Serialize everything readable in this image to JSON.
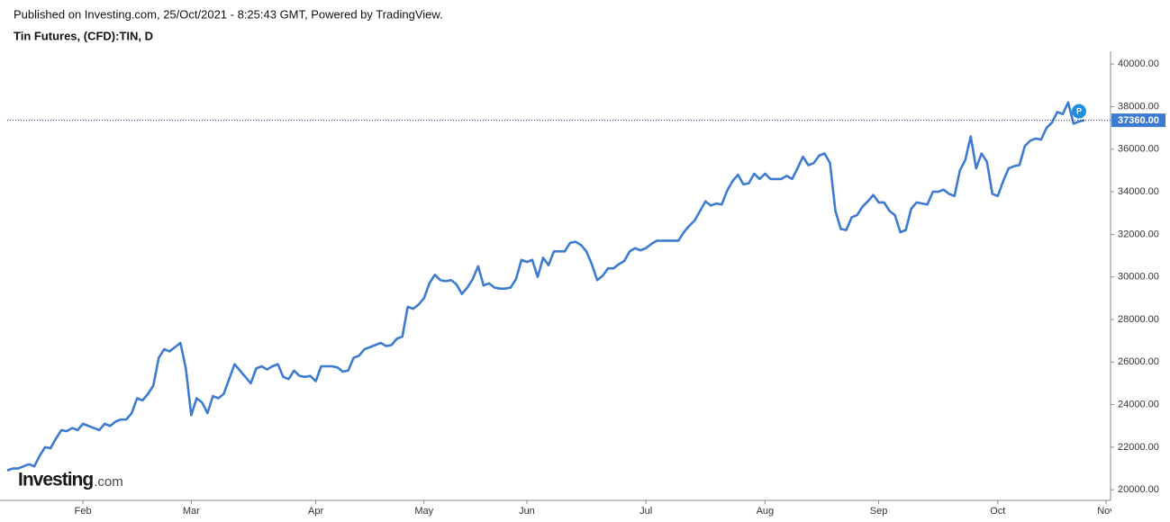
{
  "chart_data": {
    "type": "line",
    "published": "Published on Investing.com, 25/Oct/2021 - 8:25:43 GMT, Powered by TradingView.",
    "title": "Tin Futures, (CFD):TIN, D",
    "logo": "Investing",
    "logo_suffix": ".com",
    "annotation": "P",
    "price_line": {
      "value": 37360,
      "label": "37360.00"
    },
    "categories": [
      null,
      null,
      null,
      null,
      null,
      null,
      null,
      null,
      null,
      null,
      null,
      null,
      null,
      null,
      "Feb",
      null,
      null,
      null,
      null,
      null,
      null,
      null,
      null,
      null,
      null,
      null,
      null,
      null,
      null,
      null,
      null,
      null,
      null,
      null,
      "Mar",
      null,
      null,
      null,
      null,
      null,
      null,
      null,
      null,
      null,
      null,
      null,
      null,
      null,
      null,
      null,
      null,
      null,
      null,
      null,
      null,
      null,
      null,
      "Apr",
      null,
      null,
      null,
      null,
      null,
      null,
      null,
      null,
      null,
      null,
      null,
      null,
      null,
      null,
      null,
      null,
      null,
      null,
      null,
      "May",
      null,
      null,
      null,
      null,
      null,
      null,
      null,
      null,
      null,
      null,
      null,
      null,
      null,
      null,
      null,
      null,
      null,
      null,
      "Jun",
      null,
      null,
      null,
      null,
      null,
      null,
      null,
      null,
      null,
      null,
      null,
      null,
      null,
      null,
      null,
      null,
      null,
      null,
      null,
      null,
      null,
      "Jul",
      null,
      null,
      null,
      null,
      null,
      null,
      null,
      null,
      null,
      null,
      null,
      null,
      null,
      null,
      null,
      null,
      null,
      null,
      null,
      null,
      null,
      "Aug",
      null,
      null,
      null,
      null,
      null,
      null,
      null,
      null,
      null,
      null,
      null,
      null,
      null,
      null,
      null,
      null,
      null,
      null,
      null,
      null,
      "Sep",
      null,
      null,
      null,
      null,
      null,
      null,
      null,
      null,
      null,
      null,
      null,
      null,
      null,
      null,
      null,
      null,
      null,
      null,
      null,
      null,
      null,
      "Oct",
      null,
      null,
      null,
      null,
      null,
      null,
      null,
      null,
      null,
      null,
      null,
      null,
      null,
      null,
      null,
      null,
      null,
      null,
      null,
      "Nov"
    ],
    "series": [
      {
        "name": "TIN",
        "color": "#3d7bd1",
        "values": [
          20900,
          21000,
          21000,
          21100,
          21200,
          21100,
          21600,
          22000,
          21950,
          22400,
          22800,
          22750,
          22900,
          22800,
          23100,
          23000,
          22900,
          22800,
          23100,
          23000,
          23200,
          23300,
          23300,
          23600,
          24300,
          24200,
          24500,
          24900,
          26200,
          26600,
          26500,
          26700,
          26900,
          25700,
          23500,
          24300,
          24100,
          23600,
          24400,
          24300,
          24500,
          25200,
          25900,
          25600,
          25300,
          25000,
          25700,
          25800,
          25650,
          25800,
          25900,
          25300,
          25200,
          25600,
          25350,
          25300,
          25350,
          25100,
          25800,
          25800,
          25800,
          25750,
          25550,
          25600,
          26200,
          26300,
          26600,
          26700,
          26800,
          26900,
          26750,
          26800,
          27100,
          27200,
          28600,
          28500,
          28700,
          29000,
          29700,
          30100,
          29850,
          29800,
          29850,
          29650,
          29200,
          29500,
          29900,
          30500,
          29600,
          29700,
          29500,
          29450,
          29450,
          29500,
          29900,
          30800,
          30700,
          30800,
          30000,
          30900,
          30550,
          31200,
          31200,
          31200,
          31600,
          31650,
          31500,
          31200,
          30600,
          29850,
          30050,
          30400,
          30400,
          30600,
          30750,
          31200,
          31350,
          31250,
          31350,
          31550,
          31700,
          31700,
          31700,
          31700,
          31700,
          32100,
          32400,
          32650,
          33100,
          33550,
          33350,
          33450,
          33400,
          34050,
          34500,
          34800,
          34350,
          34400,
          34850,
          34600,
          34850,
          34600,
          34600,
          34600,
          34750,
          34600,
          35100,
          35650,
          35250,
          35350,
          35700,
          35800,
          35350,
          33100,
          32250,
          32200,
          32800,
          32900,
          33300,
          33550,
          33850,
          33500,
          33500,
          33100,
          32900,
          32100,
          32200,
          33200,
          33500,
          33450,
          33400,
          34000,
          34000,
          34100,
          33900,
          33800,
          35000,
          35500,
          36600,
          35100,
          35800,
          35400,
          33900,
          33800,
          34500,
          35100,
          35200,
          35250,
          36150,
          36400,
          36500,
          36450,
          37000,
          37250,
          37750,
          37650,
          38200,
          37200,
          37300,
          37360,
          null,
          null,
          null,
          null
        ]
      }
    ],
    "ylim": [
      19500,
      40600
    ],
    "yticks": [
      {
        "value": 20000,
        "label": "20000.00"
      },
      {
        "value": 22000,
        "label": "22000.00"
      },
      {
        "value": 24000,
        "label": "24000.00"
      },
      {
        "value": 26000,
        "label": "26000.00"
      },
      {
        "value": 28000,
        "label": "28000.00"
      },
      {
        "value": 30000,
        "label": "30000.00"
      },
      {
        "value": 32000,
        "label": "32000.00"
      },
      {
        "value": 34000,
        "label": "34000.00"
      },
      {
        "value": 36000,
        "label": "36000.00"
      },
      {
        "value": 38000,
        "label": "38000.00"
      },
      {
        "value": 40000,
        "label": "40000.00"
      }
    ],
    "grid": false
  }
}
